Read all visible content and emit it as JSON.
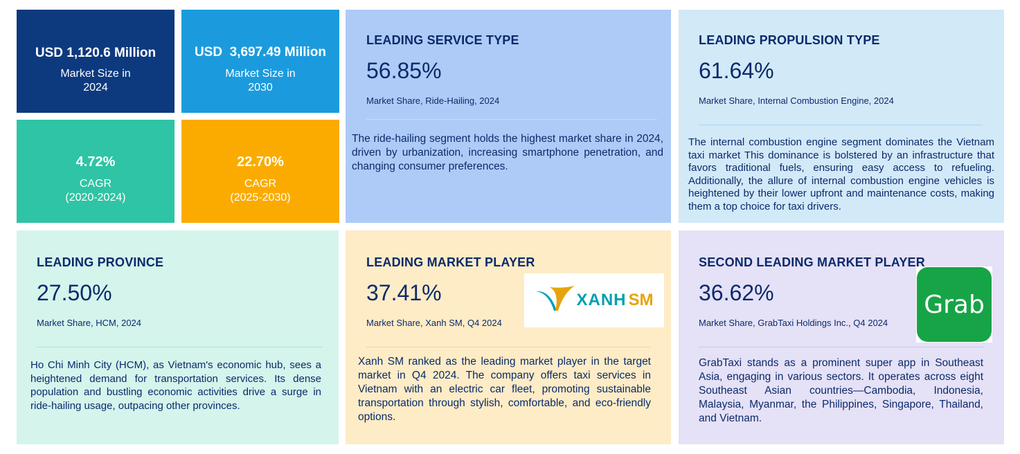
{
  "stats": [
    {
      "value": "USD 1,120.6 Million",
      "label_line1": "Market Size in",
      "label_line2": "2024"
    },
    {
      "value": "USD  3,697.49 Million",
      "label_line1": "Market Size in",
      "label_line2": "2030"
    },
    {
      "value": "4.72%",
      "label_line1": "CAGR",
      "label_line2": "(2020-2024)"
    },
    {
      "value": "22.70%",
      "label_line1": "CAGR",
      "label_line2": "(2025-2030)"
    }
  ],
  "cards": {
    "service": {
      "title": "LEADING SERVICE TYPE",
      "percent": "56.85%",
      "subtitle": "Market Share, Ride-Hailing, 2024",
      "description": "The ride-hailing segment holds the highest market share in 2024, driven by urbanization, increasing smartphone penetration, and changing consumer preferences."
    },
    "propulsion": {
      "title": "LEADING PROPULSION TYPE",
      "percent": "61.64%",
      "subtitle": "Market Share, Internal Combustion Engine, 2024",
      "description": "The internal combustion engine segment dominates the Vietnam taxi market This dominance is bolstered by an infrastructure that favors traditional fuels, ensuring easy access to refueling. Additionally, the allure of internal combustion engine vehicles is heightened by their lower upfront and maintenance costs, making them a top choice for taxi drivers."
    },
    "province": {
      "title": "LEADING PROVINCE",
      "percent": "27.50%",
      "subtitle": "Market Share, HCM, 2024",
      "description": "Ho Chi Minh City (HCM), as Vietnam's economic hub, sees a heightened demand for transportation services. Its dense population and bustling economic activities drive a surge in ride-hailing usage, outpacing other provinces."
    },
    "player": {
      "title": "LEADING MARKET PLAYER",
      "percent": "37.41%",
      "subtitle": "Market Share, Xanh SM, Q4 2024",
      "logo_text_1": "XANH",
      "logo_text_2": "SM",
      "description": "Xanh SM ranked as the leading market player in the target market in Q4 2024. The company offers taxi services in Vietnam with an electric car fleet, promoting sustainable transportation through stylish, comfortable, and eco-friendly options."
    },
    "second_player": {
      "title": "SECOND LEADING MARKET PLAYER",
      "percent": "36.62%",
      "subtitle": "Market Share, GrabTaxi Holdings Inc., Q4 2024",
      "logo_text": "Grab",
      "description": "GrabTaxi stands as a prominent super app in Southeast Asia, engaging in various sectors. It operates across eight Southeast Asian countries—Cambodia, Indonesia, Malaysia, Myanmar, the Philippines, Singapore, Thailand, and Vietnam."
    }
  },
  "colors": {
    "navy": "#0d3a7e",
    "blue": "#1b9bdd",
    "teal": "#2ec4a5",
    "amber": "#fbab00",
    "text": "#0b2a6b",
    "xanh_teal": "#00a0b0",
    "xanh_gold": "#e5a40f",
    "grab_green": "#17a447"
  },
  "icons": [
    "xanh-sm-logo",
    "grab-logo"
  ]
}
